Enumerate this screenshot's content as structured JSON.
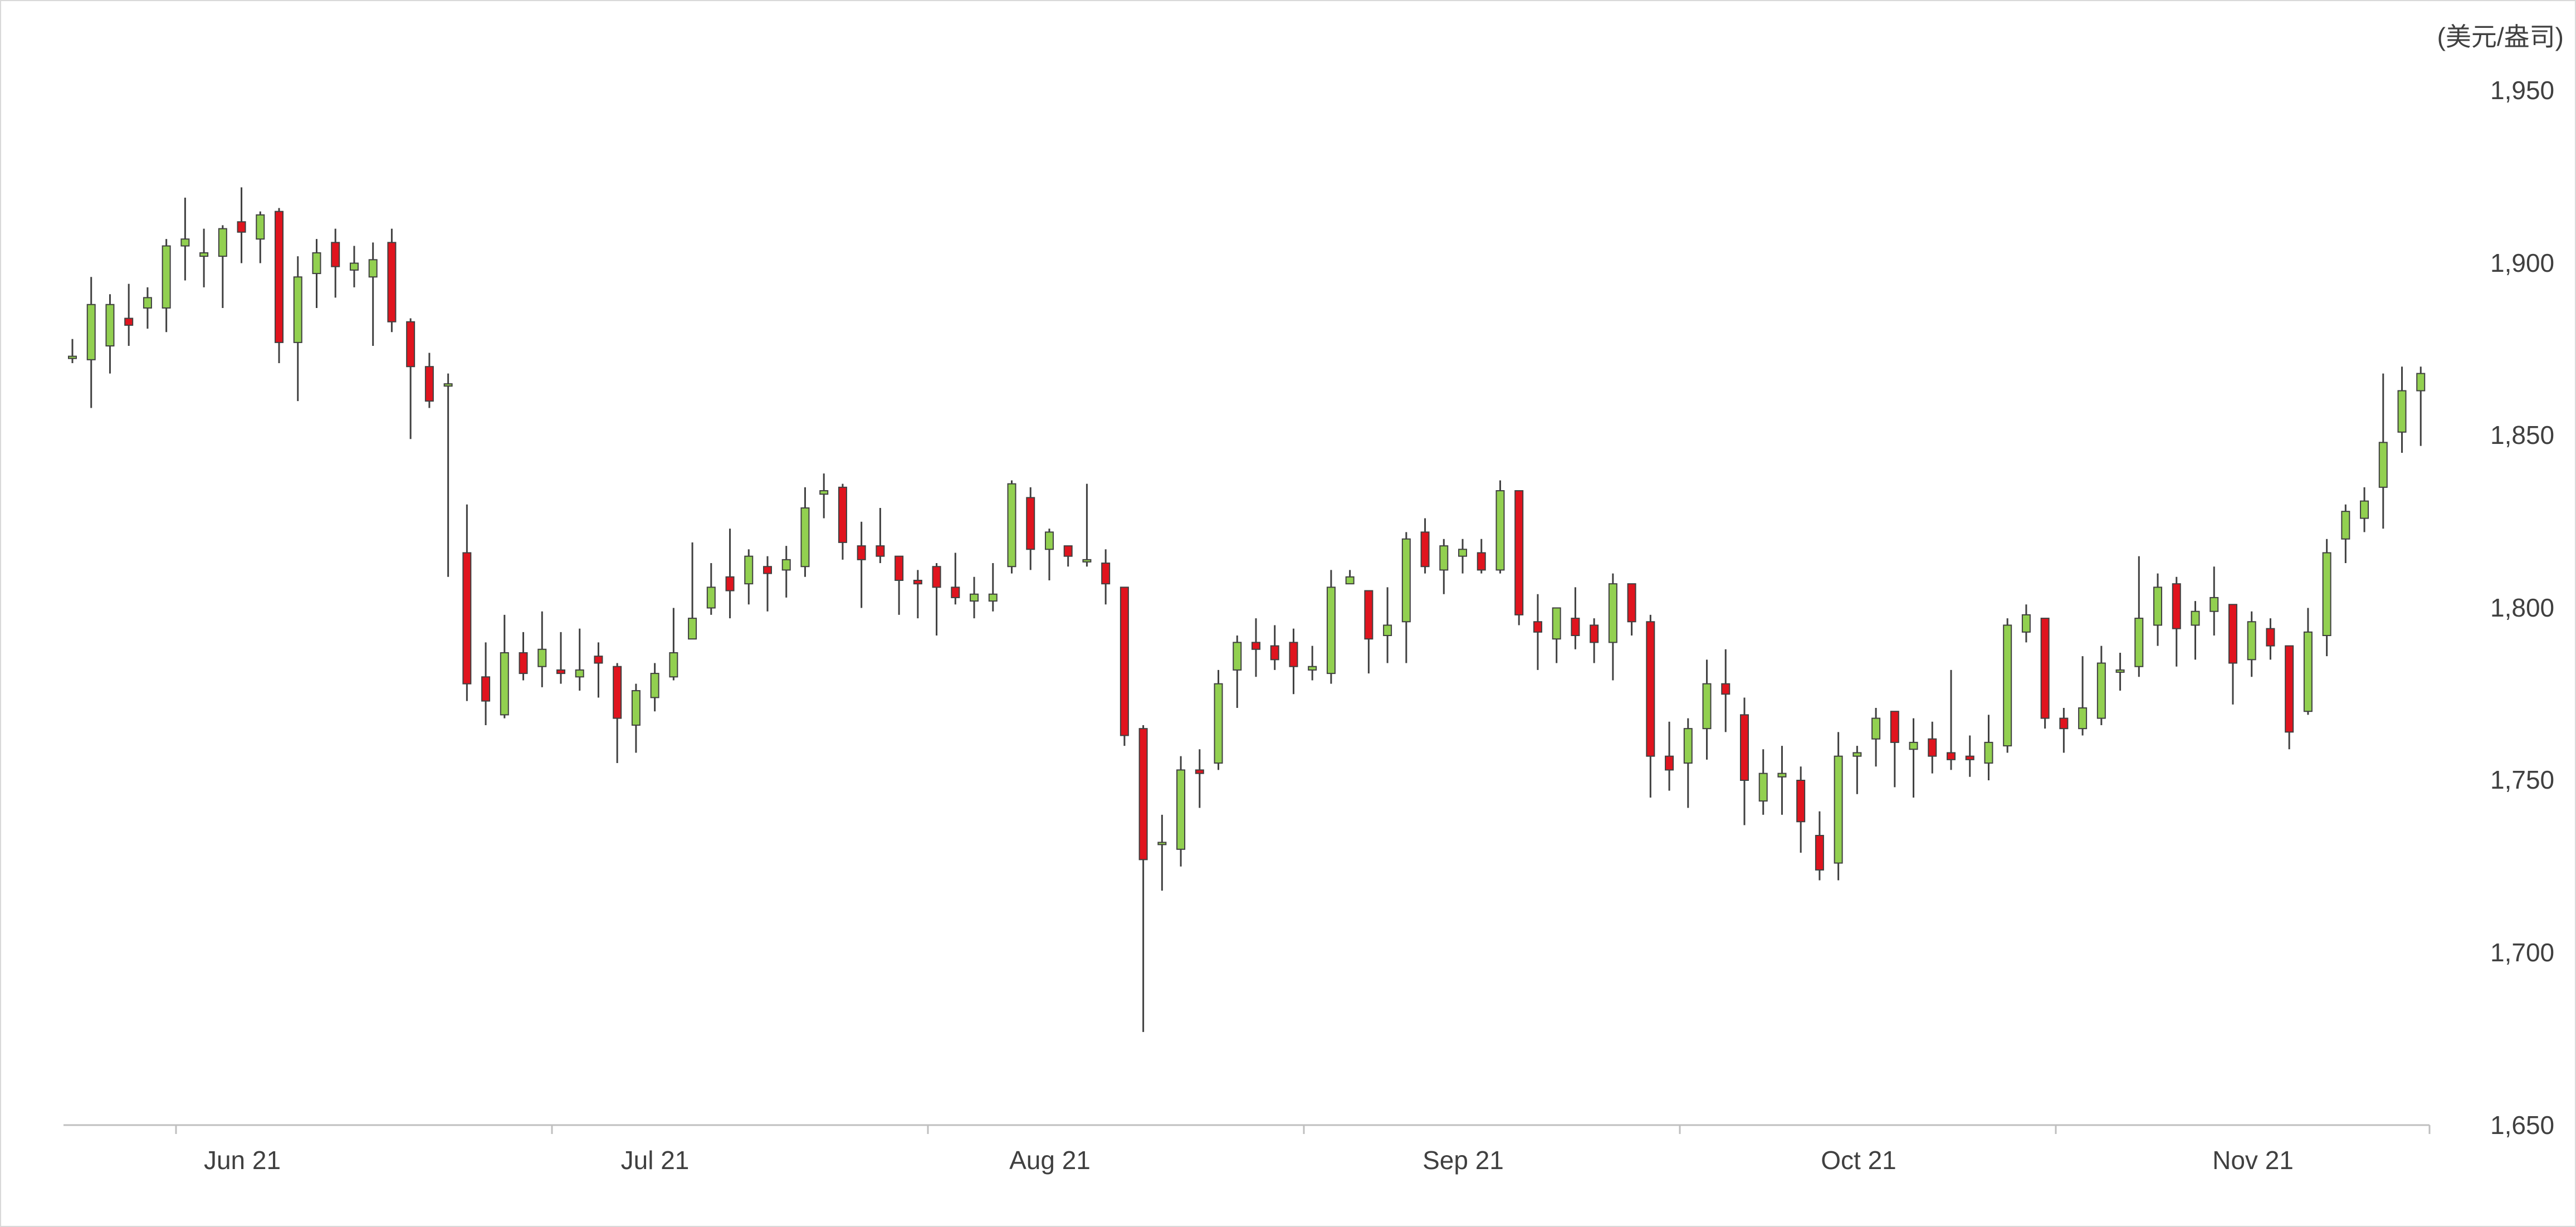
{
  "chart_data": {
    "type": "candlestick",
    "unit_label": "(美元/盎司)",
    "ylim": [
      1650,
      1950
    ],
    "y_ticks": [
      "1,650",
      "1,700",
      "1,750",
      "1,800",
      "1,850",
      "1,900",
      "1,950"
    ],
    "x_ticks": [
      "Jun 21",
      "Jul 21",
      "Aug 21",
      "Sep 21",
      "Oct 21",
      "Nov 21"
    ],
    "grid": false,
    "colors": {
      "up": "#92d050",
      "down": "#e0141e",
      "wick": "#404040",
      "axis": "#bfbfbf"
    },
    "ohlc": [
      [
        1873,
        1878,
        1871,
        1873
      ],
      [
        1872,
        1896,
        1858,
        1888
      ],
      [
        1876,
        1891,
        1868,
        1888
      ],
      [
        1884,
        1894,
        1876,
        1882
      ],
      [
        1887,
        1893,
        1881,
        1890
      ],
      [
        1887,
        1907,
        1880,
        1905
      ],
      [
        1905,
        1919,
        1895,
        1907
      ],
      [
        1902,
        1910,
        1893,
        1903
      ],
      [
        1902,
        1911,
        1887,
        1910
      ],
      [
        1912,
        1922,
        1900,
        1909
      ],
      [
        1907,
        1915,
        1900,
        1914
      ],
      [
        1915,
        1916,
        1871,
        1877
      ],
      [
        1877,
        1902,
        1860,
        1896
      ],
      [
        1897,
        1907,
        1887,
        1903
      ],
      [
        1906,
        1910,
        1890,
        1899
      ],
      [
        1898,
        1905,
        1893,
        1900
      ],
      [
        1896,
        1906,
        1876,
        1901
      ],
      [
        1906,
        1910,
        1880,
        1883
      ],
      [
        1883,
        1884,
        1849,
        1870
      ],
      [
        1870,
        1874,
        1858,
        1860
      ],
      [
        1865,
        1868,
        1809,
        1865
      ],
      [
        1816,
        1830,
        1773,
        1778
      ],
      [
        1780,
        1790,
        1766,
        1773
      ],
      [
        1769,
        1798,
        1768,
        1787
      ],
      [
        1787,
        1793,
        1779,
        1781
      ],
      [
        1783,
        1799,
        1777,
        1788
      ],
      [
        1782,
        1793,
        1778,
        1781
      ],
      [
        1780,
        1794,
        1776,
        1782
      ],
      [
        1786,
        1790,
        1774,
        1784
      ],
      [
        1783,
        1784,
        1755,
        1768
      ],
      [
        1766,
        1778,
        1758,
        1776
      ],
      [
        1774,
        1784,
        1770,
        1781
      ],
      [
        1780,
        1800,
        1779,
        1787
      ],
      [
        1791,
        1819,
        1791,
        1797
      ],
      [
        1800,
        1813,
        1798,
        1806
      ],
      [
        1809,
        1823,
        1797,
        1805
      ],
      [
        1807,
        1817,
        1801,
        1815
      ],
      [
        1812,
        1815,
        1799,
        1810
      ],
      [
        1811,
        1818,
        1803,
        1814
      ],
      [
        1812,
        1835,
        1809,
        1829
      ],
      [
        1833,
        1839,
        1826,
        1834
      ],
      [
        1835,
        1836,
        1814,
        1819
      ],
      [
        1818,
        1825,
        1800,
        1814
      ],
      [
        1818,
        1829,
        1813,
        1815
      ],
      [
        1815,
        1815,
        1798,
        1808
      ],
      [
        1808,
        1811,
        1797,
        1807
      ],
      [
        1812,
        1813,
        1792,
        1806
      ],
      [
        1806,
        1816,
        1801,
        1803
      ],
      [
        1802,
        1809,
        1797,
        1804
      ],
      [
        1802,
        1813,
        1799,
        1804
      ],
      [
        1812,
        1837,
        1810,
        1836
      ],
      [
        1832,
        1835,
        1811,
        1817
      ],
      [
        1817,
        1823,
        1808,
        1822
      ],
      [
        1818,
        1818,
        1812,
        1815
      ],
      [
        1814,
        1836,
        1812,
        1814
      ],
      [
        1813,
        1817,
        1801,
        1807
      ],
      [
        1806,
        1806,
        1760,
        1763
      ],
      [
        1765,
        1766,
        1677,
        1727
      ],
      [
        1732,
        1740,
        1718,
        1732
      ],
      [
        1730,
        1757,
        1725,
        1753
      ],
      [
        1753,
        1759,
        1742,
        1752
      ],
      [
        1755,
        1782,
        1753,
        1778
      ],
      [
        1782,
        1792,
        1771,
        1790
      ],
      [
        1790,
        1797,
        1780,
        1788
      ],
      [
        1789,
        1795,
        1782,
        1785
      ],
      [
        1790,
        1794,
        1775,
        1783
      ],
      [
        1782,
        1789,
        1779,
        1783
      ],
      [
        1781,
        1811,
        1778,
        1806
      ],
      [
        1807,
        1811,
        1807,
        1809
      ],
      [
        1805,
        1805,
        1781,
        1791
      ],
      [
        1792,
        1806,
        1784,
        1795
      ],
      [
        1796,
        1822,
        1784,
        1820
      ],
      [
        1822,
        1826,
        1810,
        1812
      ],
      [
        1811,
        1820,
        1804,
        1818
      ],
      [
        1815,
        1820,
        1810,
        1817
      ],
      [
        1816,
        1820,
        1810,
        1811
      ],
      [
        1811,
        1837,
        1810,
        1834
      ],
      [
        1834,
        1834,
        1795,
        1798
      ],
      [
        1796,
        1804,
        1782,
        1793
      ],
      [
        1791,
        1800,
        1784,
        1800
      ],
      [
        1797,
        1806,
        1788,
        1792
      ],
      [
        1795,
        1797,
        1784,
        1790
      ],
      [
        1790,
        1810,
        1779,
        1807
      ],
      [
        1807,
        1807,
        1792,
        1796
      ],
      [
        1796,
        1798,
        1745,
        1757
      ],
      [
        1757,
        1767,
        1747,
        1753
      ],
      [
        1755,
        1768,
        1742,
        1765
      ],
      [
        1765,
        1785,
        1756,
        1778
      ],
      [
        1778,
        1788,
        1764,
        1775
      ],
      [
        1769,
        1774,
        1737,
        1750
      ],
      [
        1744,
        1759,
        1740,
        1752
      ],
      [
        1751,
        1760,
        1740,
        1752
      ],
      [
        1750,
        1754,
        1729,
        1738
      ],
      [
        1734,
        1741,
        1721,
        1724
      ],
      [
        1726,
        1764,
        1721,
        1757
      ],
      [
        1757,
        1760,
        1746,
        1758
      ],
      [
        1762,
        1771,
        1754,
        1768
      ],
      [
        1770,
        1770,
        1748,
        1761
      ],
      [
        1759,
        1768,
        1745,
        1761
      ],
      [
        1762,
        1767,
        1752,
        1757
      ],
      [
        1758,
        1782,
        1753,
        1756
      ],
      [
        1757,
        1763,
        1751,
        1756
      ],
      [
        1755,
        1769,
        1750,
        1761
      ],
      [
        1760,
        1797,
        1758,
        1795
      ],
      [
        1793,
        1801,
        1790,
        1798
      ],
      [
        1797,
        1797,
        1765,
        1768
      ],
      [
        1768,
        1771,
        1758,
        1765
      ],
      [
        1765,
        1786,
        1763,
        1771
      ],
      [
        1768,
        1789,
        1766,
        1784
      ],
      [
        1782,
        1787,
        1776,
        1782
      ],
      [
        1783,
        1815,
        1780,
        1797
      ],
      [
        1795,
        1810,
        1789,
        1806
      ],
      [
        1807,
        1809,
        1783,
        1794
      ],
      [
        1795,
        1802,
        1785,
        1799
      ],
      [
        1799,
        1812,
        1792,
        1803
      ],
      [
        1801,
        1801,
        1772,
        1784
      ],
      [
        1785,
        1799,
        1780,
        1796
      ],
      [
        1794,
        1797,
        1785,
        1789
      ],
      [
        1789,
        1789,
        1759,
        1764
      ],
      [
        1770,
        1800,
        1769,
        1793
      ],
      [
        1792,
        1820,
        1786,
        1816
      ],
      [
        1820,
        1830,
        1813,
        1828
      ],
      [
        1826,
        1835,
        1822,
        1831
      ],
      [
        1835,
        1868,
        1823,
        1848
      ],
      [
        1851,
        1870,
        1845,
        1863
      ],
      [
        1863,
        1870,
        1847,
        1868
      ]
    ]
  }
}
